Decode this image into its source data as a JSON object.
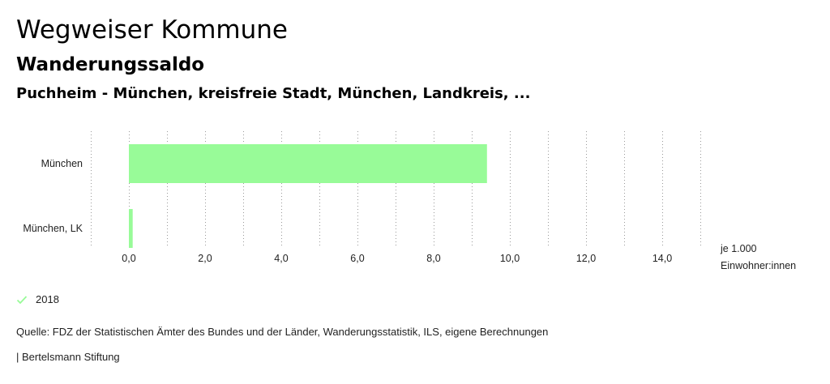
{
  "header": {
    "title": "Wegweiser Kommune",
    "subtitle": "Wanderungssaldo",
    "region": "Puchheim - München, kreisfreie Stadt, München, Landkreis, ..."
  },
  "chart_data": {
    "type": "bar",
    "orientation": "horizontal",
    "categories": [
      "München",
      "München, LK"
    ],
    "series": [
      {
        "name": "2018",
        "values": [
          9.4,
          0.1
        ],
        "color": "#98fb98"
      }
    ],
    "xlim": [
      -1,
      15
    ],
    "xticks": [
      0,
      2,
      4,
      6,
      8,
      10,
      12,
      14
    ],
    "xtick_labels": [
      "0,0",
      "2,0",
      "4,0",
      "6,0",
      "8,0",
      "10,0",
      "12,0",
      "14,0"
    ],
    "unit_label": [
      "je 1.000",
      "Einwohner:innen"
    ],
    "grid": true,
    "legend_position": "bottom-left"
  },
  "legend": {
    "label": "2018",
    "color": "#98fb98"
  },
  "footer": {
    "source": "Quelle: FDZ der Statistischen Ämter des Bundes und der Länder, Wanderungsstatistik, ILS, eigene Berechnungen",
    "credit": "| Bertelsmann Stiftung"
  }
}
